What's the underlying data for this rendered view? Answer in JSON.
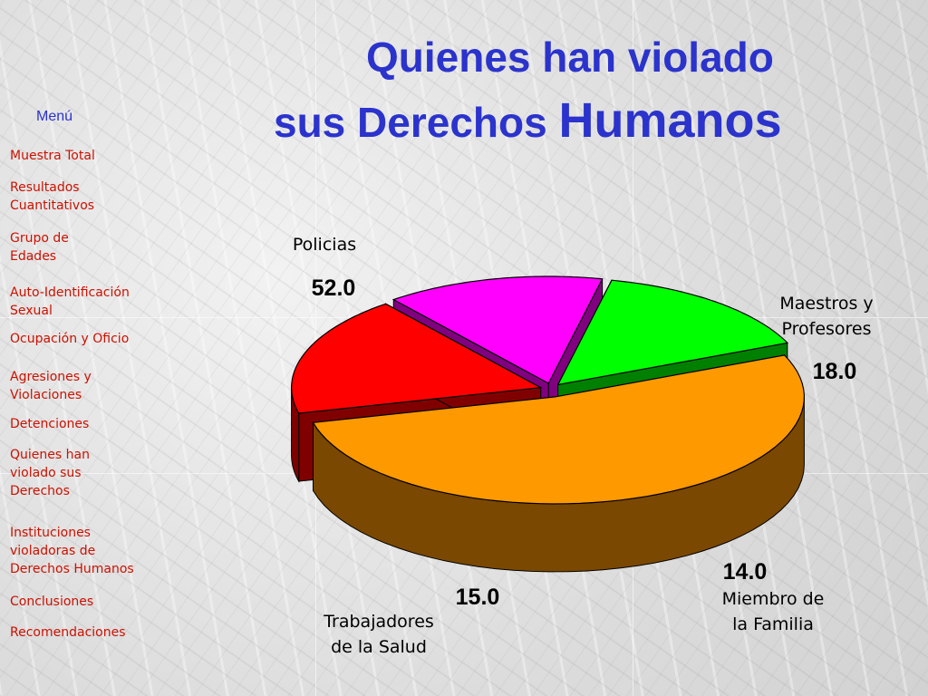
{
  "title": {
    "line1": "Quienes han violado",
    "line2_prefix": "sus Derechos ",
    "line2_emphasis": "Humanos",
    "color": "#2b33cc"
  },
  "menu": {
    "heading": "Menú",
    "link_color": "#cc1100",
    "items": [
      "Muestra Total",
      "Resultados\nCuantitativos",
      "Grupo de\nEdades",
      "Auto-Identificación\nSexual",
      "Ocupación y Oficio",
      "Agresiones y\nViolaciones",
      "Detenciones",
      "Quienes han\nviolado sus\nDerechos",
      "Instituciones\nvioladoras de\nDerechos Humanos",
      "Conclusiones",
      "Recomendaciones"
    ]
  },
  "chart_data": {
    "type": "pie",
    "style": "3d-exploded",
    "unit": "%",
    "slices": [
      {
        "label": "Policias",
        "value": 52.0,
        "color": "#ff9900",
        "side_color": "#7a4800"
      },
      {
        "label": "Maestros y\nProfesores",
        "value": 18.0,
        "color": "#ff0000",
        "side_color": "#800000"
      },
      {
        "label": "Miembro de\nla Familia",
        "value": 14.0,
        "color": "#ff00ff",
        "side_color": "#800080"
      },
      {
        "label": "Trabajadores\nde la Salud",
        "value": 15.0,
        "color": "#00ff00",
        "side_color": "#008000"
      }
    ]
  }
}
